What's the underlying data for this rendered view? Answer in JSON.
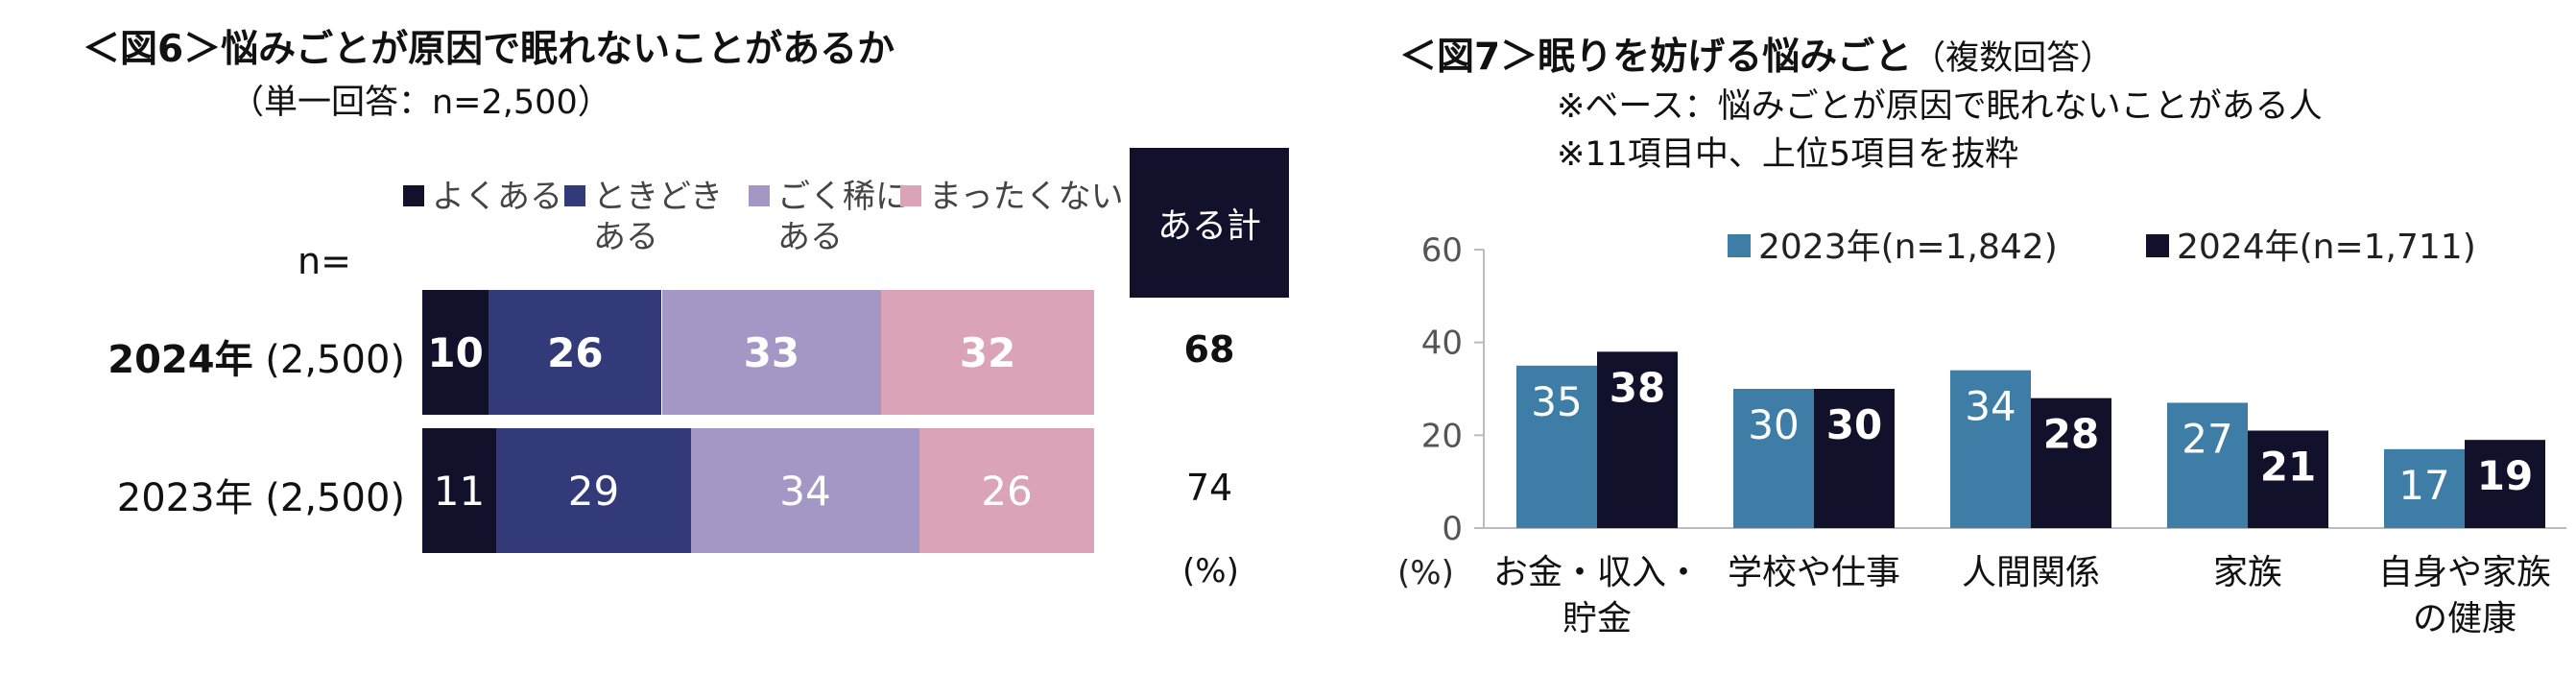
{
  "left": {
    "title": "＜図6＞悩みごとが原因で眠れないことがあるか",
    "subtitle": "（単一回答：n=2,500）",
    "n_label": "n=",
    "total_header": "ある計",
    "unit": "(%)",
    "legend": [
      {
        "line1": "よくある",
        "line2": "",
        "color": "#11112b"
      },
      {
        "line1": "ときどき",
        "line2": "ある",
        "color": "#323a7a"
      },
      {
        "line1": "ごく稀に",
        "line2": "ある",
        "color": "#a497c6"
      },
      {
        "line1": "まったくない",
        "line2": "",
        "color": "#dba3b8"
      }
    ]
  },
  "right": {
    "title": "＜図7＞眠りを妨げる悩みごと",
    "title_note": "（複数回答）",
    "note1": "※ベース：悩みごとが原因で眠れないことがある人",
    "note2": "※11項目中、上位5項目を抜粋",
    "unit": "(%)"
  },
  "chart_data": [
    {
      "type": "bar",
      "orientation": "horizontal-stacked-100",
      "categories": [
        "よくある",
        "ときどきある",
        "ごく稀にある",
        "まったくない"
      ],
      "colors": [
        "#11112b",
        "#323a7a",
        "#a497c6",
        "#dba3b8"
      ],
      "rows": [
        {
          "year": "2024年",
          "n": "(2,500)",
          "values": [
            10,
            26,
            33,
            32
          ],
          "total": 68,
          "bold": true
        },
        {
          "year": "2023年",
          "n": "(2,500)",
          "values": [
            11,
            29,
            34,
            26
          ],
          "total": 74,
          "bold": false
        }
      ]
    },
    {
      "type": "bar",
      "orientation": "vertical-grouped",
      "categories": [
        {
          "line1": "お金・収入・",
          "line2": "貯金"
        },
        {
          "line1": "学校や仕事",
          "line2": ""
        },
        {
          "line1": "人間関係",
          "line2": ""
        },
        {
          "line1": "家族",
          "line2": ""
        },
        {
          "line1": "自身や家族",
          "line2": "の健康"
        }
      ],
      "series": [
        {
          "name": "2023年(n=1,842)",
          "color": "#3e7ea6",
          "values": [
            35,
            30,
            34,
            27,
            17
          ]
        },
        {
          "name": "2024年(n=1,711)",
          "color": "#11112b",
          "values": [
            38,
            30,
            28,
            21,
            19
          ]
        }
      ],
      "ylim": [
        0,
        60
      ],
      "yticks": [
        "0",
        "20",
        "40",
        "60"
      ]
    }
  ]
}
